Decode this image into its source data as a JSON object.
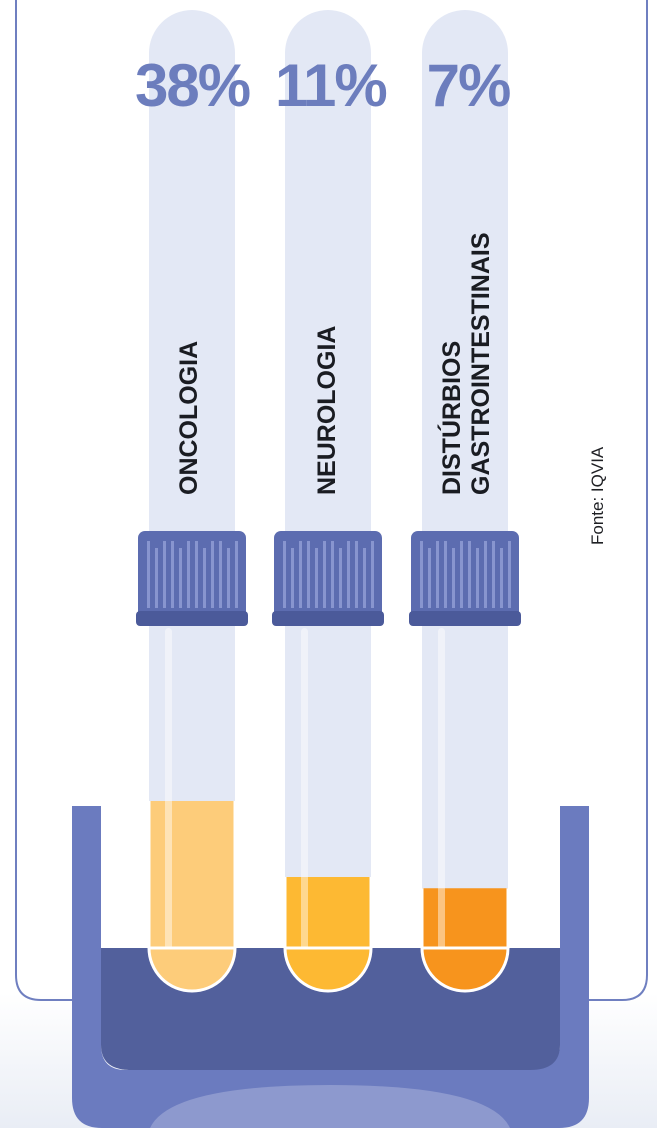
{
  "chart_data": {
    "type": "bar",
    "categories": [
      "ONCOLOGIA",
      "NEUROLOGIA",
      "DISTÚRBIOS GASTROINTESTINAIS"
    ],
    "values": [
      38,
      11,
      7
    ],
    "value_labels": [
      "38%",
      "11%",
      "7%"
    ],
    "category_lines": [
      [
        "ONCOLOGIA"
      ],
      [
        "NEUROLOGIA"
      ],
      [
        "DISTÚRBIOS",
        "GASTROINTESTINAIS"
      ]
    ],
    "unit": "%",
    "series": [
      {
        "values": [
          38,
          11,
          7
        ],
        "colors": [
          "#fdcc7a",
          "#fdb933",
          "#f7941d"
        ]
      }
    ],
    "source": "Fonte: IQVIA"
  },
  "colors": {
    "accent": "#6c7dbd",
    "rack": "#6b7bbf",
    "rack_dark": "#52609c",
    "cap": "#5c6cb0",
    "tube_glass": "#e3e8f5",
    "frame_border": "#6f7fc0"
  }
}
